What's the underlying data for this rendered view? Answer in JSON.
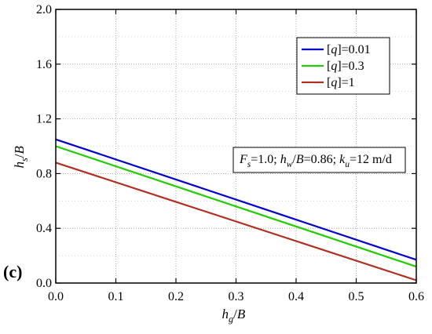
{
  "panel_label": "(c)",
  "annotation": {
    "parts": [
      {
        "text": "F",
        "italic": true
      },
      {
        "text": "s",
        "sub": true,
        "italic": true
      },
      {
        "text": "=1.0; "
      },
      {
        "text": "h",
        "italic": true
      },
      {
        "text": "w",
        "sub": true,
        "italic": true
      },
      {
        "text": "/"
      },
      {
        "text": "B",
        "italic": true
      },
      {
        "text": "=0.86; "
      },
      {
        "text": "k",
        "italic": true
      },
      {
        "text": "u",
        "sub": true,
        "italic": true
      },
      {
        "text": "=12 m/d"
      }
    ]
  },
  "chart_data": {
    "type": "line",
    "xlabel": "h_g/B",
    "ylabel": "h_s/B",
    "xlabel_parts": [
      {
        "text": "h",
        "italic": true
      },
      {
        "text": "g",
        "sub": true,
        "italic": true
      },
      {
        "text": "/"
      },
      {
        "text": "B",
        "italic": true
      }
    ],
    "ylabel_parts": [
      {
        "text": "h",
        "italic": true
      },
      {
        "text": "s",
        "sub": true,
        "italic": true
      },
      {
        "text": "/"
      },
      {
        "text": "B",
        "italic": true
      }
    ],
    "xlim": [
      0.0,
      0.6
    ],
    "ylim": [
      0.0,
      2.0
    ],
    "xticks": [
      "0.0",
      "0.1",
      "0.2",
      "0.3",
      "0.4",
      "0.5",
      "0.6"
    ],
    "yticks": [
      "0.0",
      "0.4",
      "0.8",
      "1.2",
      "1.6",
      "2.0"
    ],
    "grid": true,
    "legend_position": "top-right",
    "series": [
      {
        "name": "[q]=0.01",
        "name_parts": [
          {
            "text": "["
          },
          {
            "text": "q",
            "italic": true
          },
          {
            "text": "]=0.01"
          }
        ],
        "color": "#0000cc",
        "x": [
          0.0,
          0.6
        ],
        "y": [
          1.05,
          0.17
        ]
      },
      {
        "name": "[q]=0.3",
        "name_parts": [
          {
            "text": "["
          },
          {
            "text": "q",
            "italic": true
          },
          {
            "text": "]=0.3"
          }
        ],
        "color": "#22cc00",
        "x": [
          0.0,
          0.6
        ],
        "y": [
          1.0,
          0.12
        ]
      },
      {
        "name": "[q]=1",
        "name_parts": [
          {
            "text": "["
          },
          {
            "text": "q",
            "italic": true
          },
          {
            "text": "]=1"
          }
        ],
        "color": "#b03020",
        "x": [
          0.0,
          0.6
        ],
        "y": [
          0.88,
          0.02
        ]
      }
    ]
  }
}
